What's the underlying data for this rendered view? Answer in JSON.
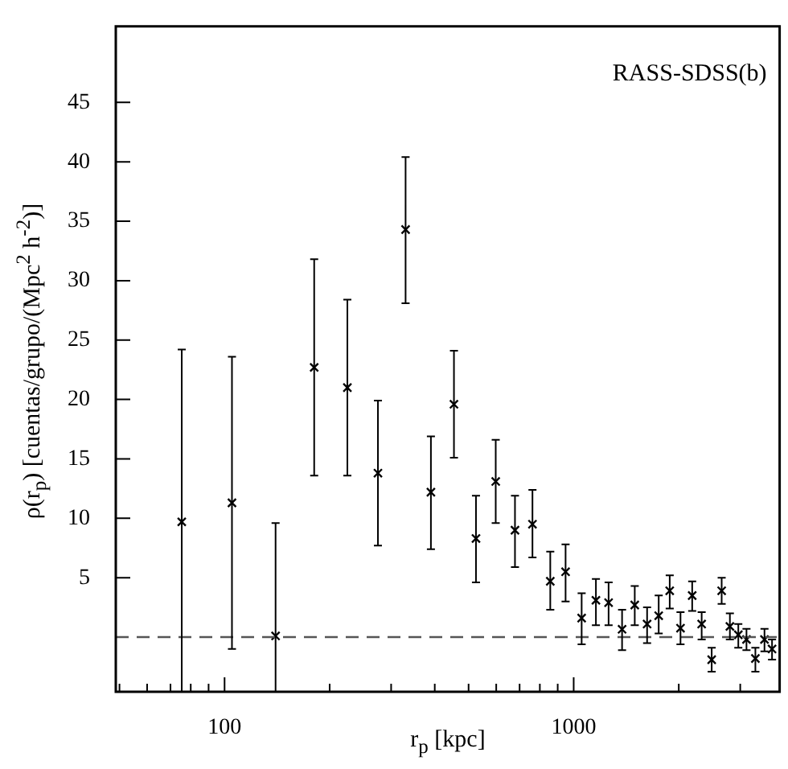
{
  "chart_data": {
    "type": "scatter",
    "xlabel": "r$_{p}$ [kpc]",
    "ylabel": "ρ(r$_{p}$) [cuentas/grupo/(Mpc$^{2}$ h$^{-2}$)]",
    "annotations": [
      "RASS-SDSS(b)"
    ],
    "x": [
      75.4,
      105,
      140,
      180.6,
      224.8,
      275,
      330,
      390,
      454,
      525,
      598,
      679,
      762,
      857,
      948,
      1054,
      1158,
      1259,
      1376,
      1496,
      1623,
      1752,
      1884,
      2023,
      2185,
      2326,
      2485,
      2654,
      2802,
      2962,
      3126,
      3315,
      3520,
      3700
    ],
    "values": [
      9.7,
      11.3,
      0.1,
      22.7,
      21.0,
      13.8,
      34.3,
      12.2,
      19.6,
      8.3,
      13.1,
      9.0,
      9.5,
      4.7,
      5.5,
      1.6,
      3.1,
      2.9,
      0.66,
      2.7,
      1.1,
      1.8,
      3.9,
      0.75,
      3.5,
      1.1,
      -1.9,
      3.9,
      0.9,
      0.2,
      -0.2,
      -1.8,
      -0.2,
      -1.0
    ],
    "errors": [
      [
        -4.6,
        24.2
      ],
      [
        -1.0,
        23.6
      ],
      [
        -4.6,
        9.6
      ],
      [
        13.6,
        31.8
      ],
      [
        13.6,
        28.4
      ],
      [
        7.7,
        19.9
      ],
      [
        28.1,
        40.4
      ],
      [
        7.4,
        16.9
      ],
      [
        15.1,
        24.1
      ],
      [
        4.6,
        11.9
      ],
      [
        9.6,
        16.6
      ],
      [
        5.9,
        11.9
      ],
      [
        6.7,
        12.4
      ],
      [
        2.3,
        7.2
      ],
      [
        3.0,
        7.8
      ],
      [
        -0.6,
        3.7
      ],
      [
        1.0,
        4.9
      ],
      [
        1.0,
        4.6
      ],
      [
        -1.1,
        2.3
      ],
      [
        1.0,
        4.3
      ],
      [
        -0.5,
        2.5
      ],
      [
        0.3,
        3.5
      ],
      [
        2.4,
        5.2
      ],
      [
        -0.6,
        2.1
      ],
      [
        2.2,
        4.7
      ],
      [
        -0.2,
        2.1
      ],
      [
        -2.9,
        -0.9
      ],
      [
        2.8,
        5.0
      ],
      [
        -0.2,
        2.0
      ],
      [
        -0.9,
        1.1
      ],
      [
        -1.1,
        0.7
      ],
      [
        -2.9,
        -0.9
      ],
      [
        -1.2,
        0.7
      ],
      [
        -1.9,
        -0.2
      ]
    ],
    "color": "#000000",
    "marker": "cross",
    "log": "x",
    "xlim": [
      48.8,
      3890
    ],
    "ylim": [
      -4.6,
      51.4
    ],
    "xticks": [
      {
        "value": 50,
        "label": null
      },
      {
        "value": 60,
        "label": null
      },
      {
        "value": 70,
        "label": null
      },
      {
        "value": 80,
        "label": null
      },
      {
        "value": 90,
        "label": null
      },
      100,
      {
        "value": 200,
        "label": null
      },
      {
        "value": 300,
        "label": null
      },
      {
        "value": 400,
        "label": null
      },
      {
        "value": 500,
        "label": null
      },
      {
        "value": 600,
        "label": null
      },
      {
        "value": 700,
        "label": null
      },
      {
        "value": 800,
        "label": null
      },
      {
        "value": 900,
        "label": null
      },
      1000,
      {
        "value": 2000,
        "label": null
      },
      {
        "value": 3000,
        "label": null
      }
    ],
    "yticks": [
      5,
      10,
      15,
      20,
      25,
      30,
      35,
      40,
      45
    ],
    "ref_lines": [
      {
        "axis": "y",
        "value": 0,
        "label": null,
        "color": "#555555",
        "line_style": "dashed"
      }
    ]
  }
}
